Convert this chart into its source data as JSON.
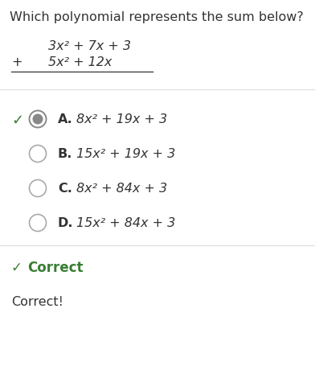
{
  "title": "Which polynomial represents the sum below?",
  "problem_line1": "3x² + 7x + 3",
  "problem_line2": "5x² + 12x",
  "problem_plus": "+",
  "options": [
    {
      "label": "A.",
      "text": "8x² + 19x + 3",
      "correct": true
    },
    {
      "label": "B.",
      "text": "15x² + 19x + 3",
      "correct": false
    },
    {
      "label": "C.",
      "text": "8x² + 84x + 3",
      "correct": false
    },
    {
      "label": "D.",
      "text": "15x² + 84x + 3",
      "correct": false
    }
  ],
  "feedback_text": "Correct!",
  "bg_color": "#ffffff",
  "text_color": "#333333",
  "green_color": "#3a7d34",
  "circle_edge_color": "#aaaaaa",
  "selected_outer_edge": "#888888",
  "selected_inner_fill": "#888888",
  "divider_color": "#dddddd",
  "title_fontsize": 11.5,
  "body_fontsize": 11.5,
  "label_fontsize": 11.5
}
